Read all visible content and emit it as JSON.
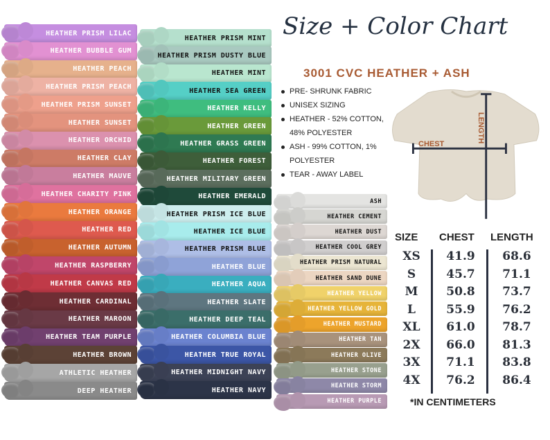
{
  "title": "Size + Color Chart",
  "subtitle": "3001 CVC HEATHER + ASH",
  "features": [
    "PRE- SHRUNK FABRIC",
    "UNISEX SIZING",
    "HEATHER - 52% COTTON, 48% POLYESTER",
    "ASH -  99% COTTON, 1% POLYESTER",
    "TEAR -  AWAY LABEL"
  ],
  "diagram": {
    "chest_label": "CHEST",
    "length_label": "LENGTH",
    "shirt_color": "#e3dccf",
    "accent": "#a85a32"
  },
  "size_chart": {
    "headers": [
      "SIZE",
      "CHEST",
      "LENGTH"
    ],
    "rows": [
      [
        "XS",
        "41.9",
        "68.6"
      ],
      [
        "S",
        "45.7",
        "71.1"
      ],
      [
        "M",
        "50.8",
        "73.7"
      ],
      [
        "L",
        "55.9",
        "76.2"
      ],
      [
        "XL",
        "61.0",
        "78.7"
      ],
      [
        "2X",
        "66.0",
        "81.3"
      ],
      [
        "3X",
        "71.1",
        "83.8"
      ],
      [
        "4X",
        "76.2",
        "86.4"
      ]
    ],
    "footnote": "*IN CENTIMETERS"
  },
  "colors": {
    "col1": [
      {
        "name": "HEATHER PRISM LILAC",
        "color": "#c58ee0",
        "text": "#ffffff"
      },
      {
        "name": "HEATHER BUBBLE GUM",
        "color": "#e291d2",
        "text": "#ffffff"
      },
      {
        "name": "HEATHER PEACH",
        "color": "#e6b18c",
        "text": "#ffffff"
      },
      {
        "name": "HEATHER PRISM PEACH",
        "color": "#eeb2a4",
        "text": "#ffffff"
      },
      {
        "name": "HEATHER PRISM SUNSET",
        "color": "#eea08c",
        "text": "#ffffff"
      },
      {
        "name": "HEATHER SUNSET",
        "color": "#e3937e",
        "text": "#ffffff"
      },
      {
        "name": "HEATHER ORCHID",
        "color": "#db91ae",
        "text": "#ffffff"
      },
      {
        "name": "HEATHER CLAY",
        "color": "#cd7b66",
        "text": "#ffffff"
      },
      {
        "name": "HEATHER MAUVE",
        "color": "#c97e9e",
        "text": "#ffffff"
      },
      {
        "name": "HEATHER CHARITY PINK",
        "color": "#df729f",
        "text": "#ffffff"
      },
      {
        "name": "HEATHER ORANGE",
        "color": "#ea7a3e",
        "text": "#ffffff"
      },
      {
        "name": "HEATHER RED",
        "color": "#de5a4e",
        "text": "#ffffff"
      },
      {
        "name": "HEATHER AUTUMN",
        "color": "#c8622e",
        "text": "#ffffff"
      },
      {
        "name": "HEATHER RASPBERRY",
        "color": "#c0466a",
        "text": "#ffffff"
      },
      {
        "name": "HEATHER CANVAS RED",
        "color": "#c03a48",
        "text": "#ffffff"
      },
      {
        "name": "HEATHER CARDINAL",
        "color": "#6e2e34",
        "text": "#ffffff"
      },
      {
        "name": "HEATHER MAROON",
        "color": "#6a3a46",
        "text": "#ffffff"
      },
      {
        "name": "HEATHER TEAM PURPLE",
        "color": "#71406f",
        "text": "#ffffff"
      },
      {
        "name": "HEATHER BROWN",
        "color": "#5c4236",
        "text": "#ffffff"
      },
      {
        "name": "ATHLETIC HEATHER",
        "color": "#a6a6a6",
        "text": "#ffffff"
      },
      {
        "name": "DEEP HEATHER",
        "color": "#8a8a8a",
        "text": "#ffffff"
      }
    ],
    "col2": [
      {
        "name": "HEATHER PRISM MINT",
        "color": "#b5e0cd",
        "text": "#111111"
      },
      {
        "name": "HEATHER PRISM DUSTY BLUE",
        "color": "#a9c9c0",
        "text": "#111111"
      },
      {
        "name": "HEATHER MINT",
        "color": "#b9e6cf",
        "text": "#111111"
      },
      {
        "name": "HEATHER SEA GREEN",
        "color": "#55cfc6",
        "text": "#111111"
      },
      {
        "name": "HEATHER KELLY",
        "color": "#3fbd7f",
        "text": "#ffffff"
      },
      {
        "name": "HEATHER GREEN",
        "color": "#6a9a3a",
        "text": "#ffffff"
      },
      {
        "name": "HEATHER GRASS GREEN",
        "color": "#2f7a52",
        "text": "#ffffff"
      },
      {
        "name": "HEATHER FOREST",
        "color": "#3e5e3a",
        "text": "#ffffff"
      },
      {
        "name": "HEATHER MILITARY GREEN",
        "color": "#5c6e5e",
        "text": "#ffffff"
      },
      {
        "name": "HEATHER EMERALD",
        "color": "#1f4a3a",
        "text": "#ffffff"
      },
      {
        "name": "HEATHER PRISM ICE BLUE",
        "color": "#cdeeee",
        "text": "#111111"
      },
      {
        "name": "HEATHER ICE BLUE",
        "color": "#a8ecec",
        "text": "#111111"
      },
      {
        "name": "HEATHER PRISM BLUE",
        "color": "#aebee6",
        "text": "#111111"
      },
      {
        "name": "HEATHER BLUE",
        "color": "#8fa3d8",
        "text": "#ffffff"
      },
      {
        "name": "HEATHER AQUA",
        "color": "#3aaebf",
        "text": "#ffffff"
      },
      {
        "name": "HEATHER SLATE",
        "color": "#5e7680",
        "text": "#ffffff"
      },
      {
        "name": "HEATHER DEEP TEAL",
        "color": "#3b6e6a",
        "text": "#ffffff"
      },
      {
        "name": "HEATHER COLUMBIA BLUE",
        "color": "#6b83cf",
        "text": "#ffffff"
      },
      {
        "name": "HEATHER TRUE ROYAL",
        "color": "#3c56a6",
        "text": "#ffffff"
      },
      {
        "name": "HEATHER MIDNIGHT NAVY",
        "color": "#3c4256",
        "text": "#ffffff"
      },
      {
        "name": "HEATHER NAVY",
        "color": "#2c3448",
        "text": "#ffffff"
      }
    ],
    "col3": [
      {
        "name": "ASH",
        "color": "#e4e4e2",
        "text": "#111111"
      },
      {
        "name": "HEATHER CEMENT",
        "color": "#d6d6d2",
        "text": "#111111"
      },
      {
        "name": "HEATHER DUST",
        "color": "#ddd7d3",
        "text": "#111111"
      },
      {
        "name": "HEATHER COOL GREY",
        "color": "#d0cece",
        "text": "#111111"
      },
      {
        "name": "HEATHER PRISM NATURAL",
        "color": "#ece6d2",
        "text": "#111111"
      },
      {
        "name": "HEATHER SAND DUNE",
        "color": "#ecd6c2",
        "text": "#111111"
      },
      {
        "name": "HEATHER YELLOW",
        "color": "#f0d26a",
        "text": "#ffffff"
      },
      {
        "name": "HEATHER YELLOW GOLD",
        "color": "#e6b43a",
        "text": "#ffffff"
      },
      {
        "name": "HEATHER MUSTARD",
        "color": "#eda42c",
        "text": "#ffffff"
      },
      {
        "name": "HEATHER TAN",
        "color": "#a8927c",
        "text": "#ffffff"
      },
      {
        "name": "HEATHER OLIVE",
        "color": "#8c7a5a",
        "text": "#ffffff"
      },
      {
        "name": "HEATHER STONE",
        "color": "#98a08e",
        "text": "#ffffff"
      },
      {
        "name": "HEATHER STORM",
        "color": "#8e88a8",
        "text": "#ffffff"
      },
      {
        "name": "HEATHER PURPLE",
        "color": "#b89ab4",
        "text": "#ffffff"
      }
    ]
  }
}
